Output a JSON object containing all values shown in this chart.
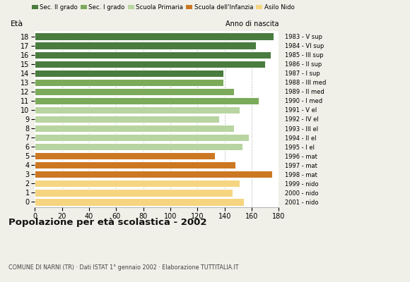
{
  "ages": [
    18,
    17,
    16,
    15,
    14,
    13,
    12,
    11,
    10,
    9,
    8,
    7,
    6,
    5,
    4,
    3,
    2,
    1,
    0
  ],
  "values": [
    176,
    163,
    174,
    170,
    139,
    139,
    147,
    165,
    151,
    136,
    147,
    158,
    153,
    133,
    148,
    175,
    151,
    146,
    154
  ],
  "years": [
    "1983 - V sup",
    "1984 - VI sup",
    "1985 - III sup",
    "1986 - II sup",
    "1987 - I sup",
    "1988 - III med",
    "1989 - II med",
    "1990 - I med",
    "1991 - V el",
    "1992 - IV el",
    "1993 - III el",
    "1994 - II el",
    "1995 - I el",
    "1996 - mat",
    "1997 - mat",
    "1998 - mat",
    "1999 - nido",
    "2000 - nido",
    "2001 - nido"
  ],
  "colors": [
    "#4a7c40",
    "#4a7c40",
    "#4a7c40",
    "#4a7c40",
    "#4a7c40",
    "#7aaa5a",
    "#7aaa5a",
    "#7aaa5a",
    "#b8d4a0",
    "#b8d4a0",
    "#b8d4a0",
    "#b8d4a0",
    "#b8d4a0",
    "#cc7722",
    "#cc7722",
    "#cc7722",
    "#f5d580",
    "#f5d580",
    "#f5d580"
  ],
  "legend_labels": [
    "Sec. II grado",
    "Sec. I grado",
    "Scuola Primaria",
    "Scuola dell'Infanzia",
    "Asilo Nido"
  ],
  "legend_colors": [
    "#4a7c40",
    "#7aaa5a",
    "#b8d4a0",
    "#cc7722",
    "#f5d580"
  ],
  "title": "Popolazione per età scolastica - 2002",
  "subtitle": "COMUNE DI NARNI (TR) · Dati ISTAT 1° gennaio 2002 · Elaborazione TUTTITALIA.IT",
  "ylabel_left": "Età",
  "ylabel_right": "Anno di nascita",
  "xlim": [
    0,
    180
  ],
  "xticks": [
    0,
    20,
    40,
    60,
    80,
    100,
    120,
    140,
    160,
    180
  ],
  "background_color": "#f0f0e8",
  "bar_background": "#ffffff",
  "grid_color": "#bbbbbb",
  "bar_height": 0.82
}
